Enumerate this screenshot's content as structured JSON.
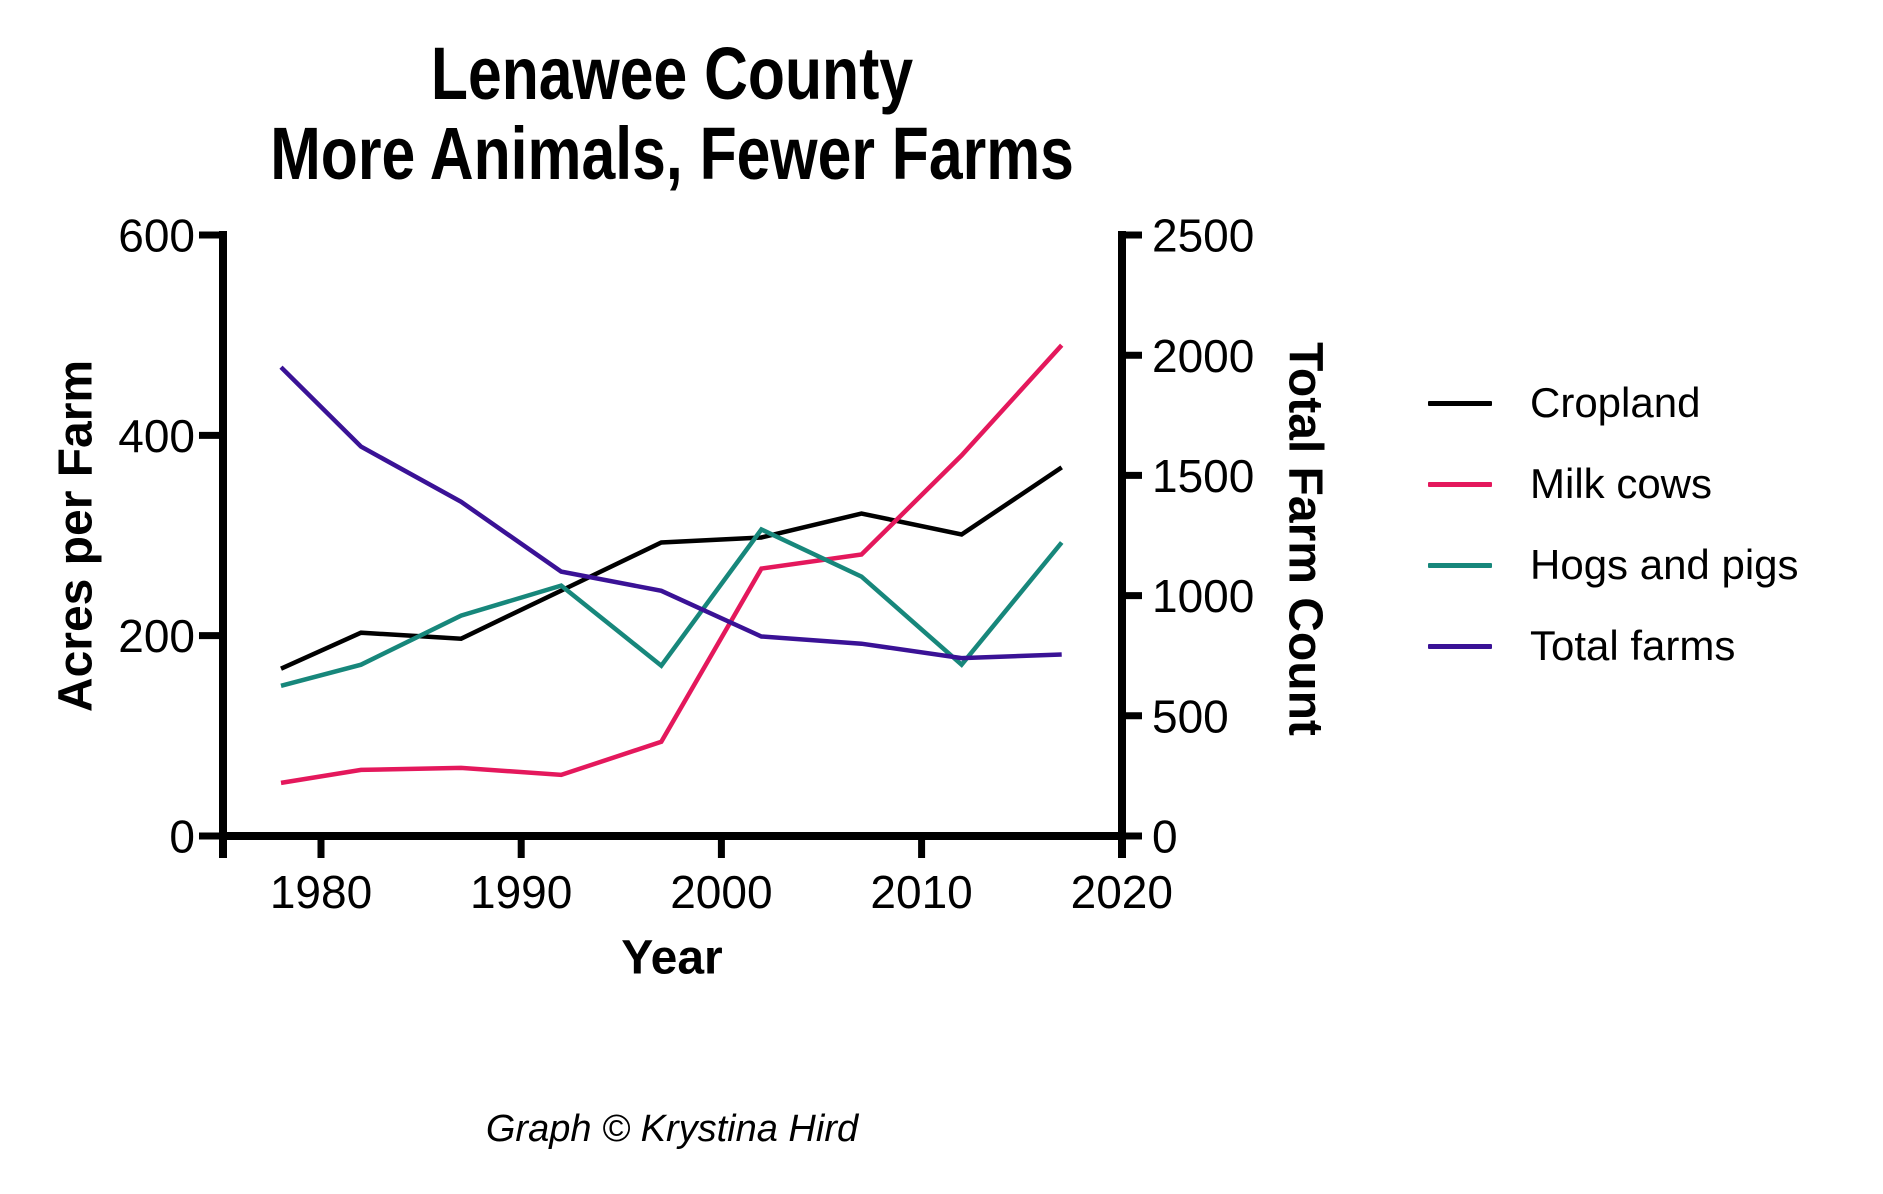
{
  "chart_data": {
    "type": "line",
    "title_line1": "Lenawee County",
    "title_line2": "More Animals, Fewer Farms",
    "xlabel": "Year",
    "ylabel_left": "Acres per Farm",
    "ylabel_right": "Total Farm Count",
    "caption": "Graph © Krystina Hird",
    "x_years": [
      1978,
      1982,
      1987,
      1992,
      1997,
      2002,
      2007,
      2012,
      2017
    ],
    "x_ticks": [
      1980,
      1990,
      2000,
      2010,
      2020
    ],
    "x_range": [
      1975.1,
      2020
    ],
    "left_axis": {
      "ticks": [
        0,
        200,
        400,
        600
      ],
      "range": [
        0,
        600
      ]
    },
    "right_axis": {
      "ticks": [
        0,
        500,
        1000,
        1500,
        2000,
        2500
      ],
      "range": [
        0,
        2500
      ]
    },
    "grid": false,
    "legend_position": "right",
    "series": [
      {
        "name": "Cropland",
        "color": "#000000",
        "axis": "left",
        "values": [
          167,
          203,
          197,
          245,
          293,
          298,
          322,
          301,
          368
        ]
      },
      {
        "name": "Milk cows",
        "color": "#E4185C",
        "axis": "left",
        "values": [
          53,
          66,
          68,
          61,
          94,
          267,
          281,
          380,
          490
        ]
      },
      {
        "name": "Hogs and pigs",
        "color": "#17877B",
        "axis": "left",
        "values": [
          150,
          171,
          220,
          250,
          170,
          306,
          259,
          171,
          293
        ]
      },
      {
        "name": "Total farms",
        "color": "#3A1296",
        "axis": "right",
        "values": [
          1950,
          1620,
          1390,
          1100,
          1020,
          830,
          800,
          740,
          755
        ]
      }
    ]
  }
}
